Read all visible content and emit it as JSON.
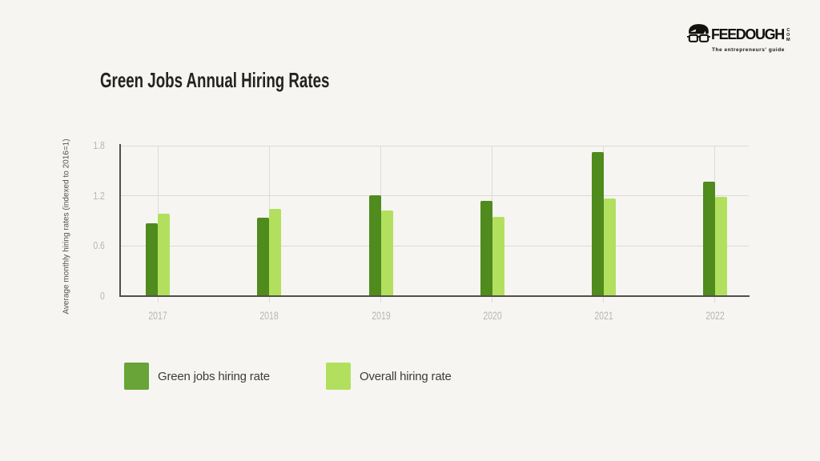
{
  "page": {
    "background": "#f6f5f2"
  },
  "logo": {
    "brand": "FEEDOUGH",
    "tld": "COM",
    "tagline": "The entrepreneurs' guide",
    "icon": "face-with-glasses-icon",
    "color": "#12120d"
  },
  "chart_data": {
    "type": "bar",
    "title": "Green Jobs Annual Hiring Rates",
    "xlabel": "",
    "ylabel": "Average monthly hiring rates (indexed to 2016=1)",
    "categories": [
      "2017",
      "2018",
      "2019",
      "2020",
      "2021",
      "2022"
    ],
    "series": [
      {
        "name": "Green jobs hiring rate",
        "color": "#4f8b1d",
        "legend_color": "#68a438",
        "values": [
          0.87,
          0.94,
          1.21,
          1.14,
          1.72,
          1.37
        ]
      },
      {
        "name": "Overall hiring rate",
        "color": "#b2e05e",
        "legend_color": "#b2e05e",
        "values": [
          0.99,
          1.04,
          1.02,
          0.95,
          1.17,
          1.19
        ]
      }
    ],
    "yticks": [
      0,
      0.6,
      1.2,
      1.8
    ],
    "ytick_labels": [
      "0",
      "0.6",
      "1.2",
      "1.8"
    ],
    "ylim": [
      0,
      1.8
    ],
    "grid": true,
    "legend_position": "bottom"
  }
}
